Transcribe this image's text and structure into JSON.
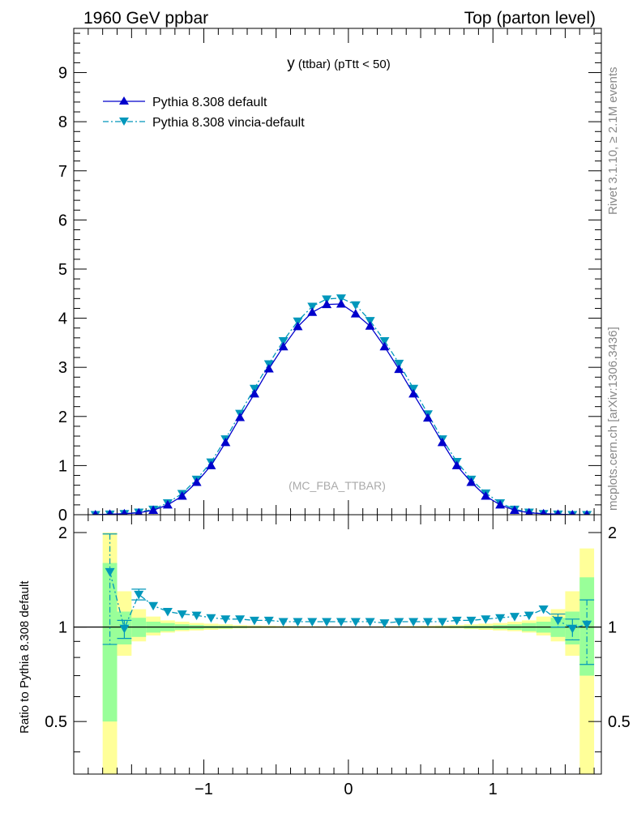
{
  "header": {
    "left": "1960 GeV ppbar",
    "right": "Top (parton level)"
  },
  "side": {
    "top": "Rivet 3.1.10, ≥ 2.1M events",
    "bottom": "mcplots.cern.ch [arXiv:1306.3436]"
  },
  "colors": {
    "default": "#0000cc",
    "vincia": "#0097bb",
    "band_inner": "#99ff99",
    "band_outer": "#ffff99"
  },
  "chart_data": [
    {
      "type": "line",
      "title": "y (ttbar) (pTtt < 50)",
      "title_main": "y",
      "title_sub": " (ttbar) (pTtt < 50)",
      "watermark": "(MC_FBA_TTBAR)",
      "xlim": [
        -1.9,
        1.75
      ],
      "ylim": [
        0,
        9.9
      ],
      "yticks": [
        0,
        1,
        2,
        3,
        4,
        5,
        6,
        7,
        8,
        9
      ],
      "ytick_labels": [
        "0",
        "1",
        "2",
        "3",
        "4",
        "5",
        "6",
        "7",
        "8",
        "9"
      ],
      "x": [
        -1.75,
        -1.65,
        -1.55,
        -1.45,
        -1.35,
        -1.25,
        -1.15,
        -1.05,
        -0.95,
        -0.85,
        -0.75,
        -0.65,
        -0.55,
        -0.45,
        -0.35,
        -0.25,
        -0.15,
        -0.05,
        0.05,
        0.15,
        0.25,
        0.35,
        0.45,
        0.55,
        0.65,
        0.75,
        0.85,
        0.95,
        1.05,
        1.15,
        1.25,
        1.35,
        1.45,
        1.55,
        1.65
      ],
      "legend_location": "upper-left",
      "series": [
        {
          "name": "Pythia 8.308 default",
          "marker": "triangle-up",
          "line": "solid",
          "values": [
            0.0,
            0.01,
            0.02,
            0.04,
            0.09,
            0.2,
            0.38,
            0.66,
            1.0,
            1.47,
            1.98,
            2.46,
            2.97,
            3.42,
            3.83,
            4.12,
            4.28,
            4.29,
            4.09,
            3.84,
            3.42,
            2.96,
            2.46,
            1.97,
            1.47,
            1.0,
            0.66,
            0.38,
            0.2,
            0.09,
            0.04,
            0.02,
            0.01,
            0.0,
            0.0
          ]
        },
        {
          "name": "Pythia 8.308 vincia-default",
          "marker": "triangle-down",
          "line": "dash-dot",
          "values": [
            0.0,
            0.01,
            0.02,
            0.05,
            0.11,
            0.24,
            0.43,
            0.72,
            1.07,
            1.54,
            2.06,
            2.57,
            3.07,
            3.54,
            3.94,
            4.24,
            4.39,
            4.41,
            4.27,
            3.95,
            3.54,
            3.08,
            2.57,
            2.05,
            1.54,
            1.08,
            0.72,
            0.44,
            0.24,
            0.11,
            0.05,
            0.02,
            0.01,
            0.0,
            0.0
          ]
        }
      ]
    },
    {
      "type": "line",
      "ylabel": "Ratio to Pythia 8.308 default",
      "xlim": [
        -1.9,
        1.75
      ],
      "ylim": [
        0.34,
        2.28
      ],
      "yticks": [
        0.5,
        1,
        2
      ],
      "ytick_labels": [
        "0.5",
        "1",
        "2"
      ],
      "xticks": [
        -1,
        0,
        1
      ],
      "xtick_labels": [
        "−1",
        "0",
        "1"
      ],
      "x": [
        -1.65,
        -1.55,
        -1.45,
        -1.35,
        -1.25,
        -1.15,
        -1.05,
        -0.95,
        -0.85,
        -0.75,
        -0.65,
        -0.55,
        -0.45,
        -0.35,
        -0.25,
        -0.15,
        -0.05,
        0.05,
        0.15,
        0.25,
        0.35,
        0.45,
        0.55,
        0.65,
        0.75,
        0.85,
        0.95,
        1.05,
        1.15,
        1.25,
        1.35,
        1.45,
        1.55,
        1.65
      ],
      "reference_line": 1,
      "band_inner": {
        "low": [
          0.5,
          0.88,
          0.93,
          0.96,
          0.97,
          0.98,
          0.985,
          0.99,
          0.99,
          0.993,
          0.995,
          0.996,
          0.997,
          0.997,
          0.998,
          0.998,
          0.998,
          0.998,
          0.998,
          0.998,
          0.997,
          0.997,
          0.996,
          0.995,
          0.993,
          0.99,
          0.99,
          0.985,
          0.98,
          0.97,
          0.96,
          0.93,
          0.88,
          0.7
        ],
        "high": [
          1.6,
          1.12,
          1.07,
          1.04,
          1.03,
          1.02,
          1.015,
          1.01,
          1.01,
          1.007,
          1.005,
          1.004,
          1.003,
          1.003,
          1.002,
          1.002,
          1.002,
          1.002,
          1.002,
          1.002,
          1.003,
          1.003,
          1.004,
          1.005,
          1.007,
          1.01,
          1.01,
          1.015,
          1.02,
          1.03,
          1.04,
          1.07,
          1.12,
          1.44
        ]
      },
      "band_outer": {
        "low": [
          0.34,
          0.81,
          0.9,
          0.94,
          0.96,
          0.97,
          0.975,
          0.98,
          0.985,
          0.99,
          0.992,
          0.993,
          0.994,
          0.995,
          0.996,
          0.996,
          0.997,
          0.997,
          0.996,
          0.996,
          0.995,
          0.994,
          0.993,
          0.992,
          0.99,
          0.985,
          0.98,
          0.975,
          0.97,
          0.96,
          0.94,
          0.9,
          0.81,
          0.34
        ],
        "high": [
          2.0,
          1.3,
          1.14,
          1.08,
          1.05,
          1.04,
          1.03,
          1.025,
          1.02,
          1.015,
          1.012,
          1.01,
          1.008,
          1.007,
          1.006,
          1.005,
          1.004,
          1.004,
          1.005,
          1.006,
          1.007,
          1.008,
          1.01,
          1.012,
          1.015,
          1.02,
          1.025,
          1.03,
          1.04,
          1.05,
          1.08,
          1.14,
          1.3,
          1.78
        ]
      },
      "series": [
        {
          "name": "Pythia 8.308 vincia-default",
          "marker": "triangle-down",
          "line": "dash-dot",
          "values": [
            1.5,
            0.99,
            1.27,
            1.17,
            1.12,
            1.1,
            1.09,
            1.07,
            1.06,
            1.06,
            1.05,
            1.05,
            1.04,
            1.04,
            1.04,
            1.04,
            1.04,
            1.04,
            1.04,
            1.03,
            1.04,
            1.04,
            1.04,
            1.04,
            1.05,
            1.05,
            1.06,
            1.07,
            1.08,
            1.09,
            1.14,
            1.05,
            0.99,
            1.02
          ],
          "err_low": [
            0.62,
            0.07,
            0.05,
            0.0,
            0.0,
            0.0,
            0.0,
            0.0,
            0.0,
            0.0,
            0.0,
            0.0,
            0.0,
            0.0,
            0.0,
            0.0,
            0.0,
            0.0,
            0.0,
            0.0,
            0.0,
            0.0,
            0.0,
            0.0,
            0.0,
            0.0,
            0.0,
            0.0,
            0.0,
            0.0,
            0.0,
            0.05,
            0.08,
            0.26
          ],
          "err_high": [
            0.48,
            0.06,
            0.05,
            0.0,
            0.0,
            0.0,
            0.0,
            0.0,
            0.0,
            0.0,
            0.0,
            0.0,
            0.0,
            0.0,
            0.0,
            0.0,
            0.0,
            0.0,
            0.0,
            0.0,
            0.0,
            0.0,
            0.0,
            0.0,
            0.0,
            0.0,
            0.0,
            0.0,
            0.0,
            0.0,
            0.0,
            0.05,
            0.07,
            0.2
          ]
        }
      ]
    }
  ]
}
